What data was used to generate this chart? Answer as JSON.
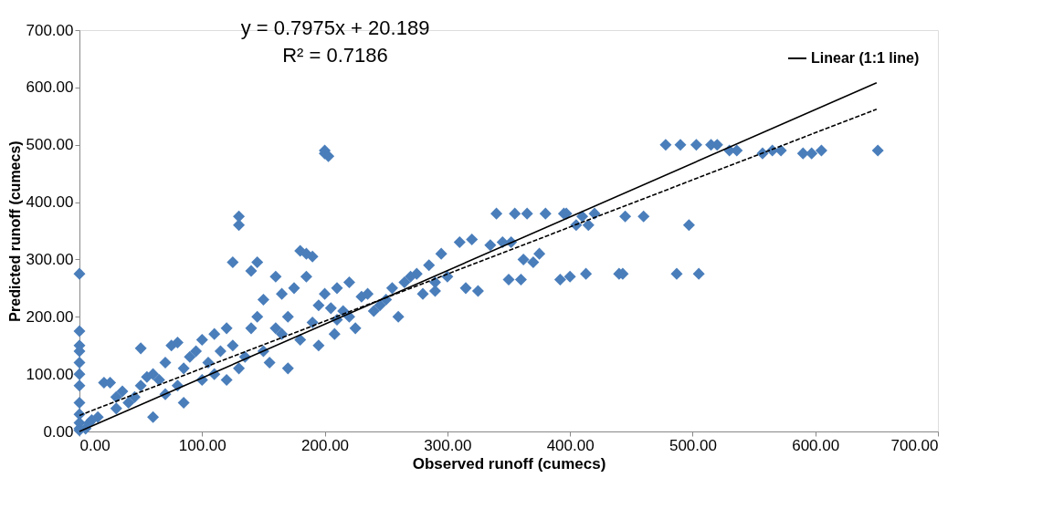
{
  "chart_data": {
    "type": "scatter",
    "xlabel": "Observed runoff (cumecs)",
    "ylabel": "Predicted runoff (cumecs)",
    "annotations": [
      "y = 0.7975x + 20.189",
      "R² = 0.7186"
    ],
    "xlim": [
      0,
      700
    ],
    "ylim": [
      0,
      700
    ],
    "xticks": [
      {
        "value": 0,
        "label": "0.00"
      },
      {
        "value": 100,
        "label": "100.00"
      },
      {
        "value": 200,
        "label": "200.00"
      },
      {
        "value": 300,
        "label": "300.00"
      },
      {
        "value": 400,
        "label": "400.00"
      },
      {
        "value": 500,
        "label": "500.00"
      },
      {
        "value": 600,
        "label": "600.00"
      },
      {
        "value": 700,
        "label": "700.00"
      }
    ],
    "yticks": [
      {
        "value": 0,
        "label": "0.00"
      },
      {
        "value": 100,
        "label": "100.00"
      },
      {
        "value": 200,
        "label": "200.00"
      },
      {
        "value": 300,
        "label": "300.00"
      },
      {
        "value": 400,
        "label": "400.00"
      },
      {
        "value": 500,
        "label": "500.00"
      },
      {
        "value": 600,
        "label": "600.00"
      },
      {
        "value": 700,
        "label": "700.00"
      }
    ],
    "grid": false,
    "legend": "top right",
    "marker": "diamond",
    "series": [
      {
        "color": "#4a7ebb",
        "x": [
          0,
          0,
          0,
          0,
          0,
          0,
          0,
          0,
          0,
          0,
          0,
          0,
          5,
          8,
          10,
          15,
          20,
          25,
          30,
          30,
          35,
          40,
          45,
          50,
          50,
          55,
          60,
          60,
          65,
          70,
          70,
          75,
          80,
          80,
          85,
          85,
          90,
          95,
          100,
          100,
          105,
          110,
          110,
          115,
          120,
          120,
          125,
          125,
          130,
          130,
          130,
          135,
          140,
          140,
          145,
          145,
          150,
          150,
          155,
          160,
          160,
          165,
          165,
          170,
          170,
          175,
          180,
          180,
          185,
          185,
          190,
          190,
          195,
          195,
          200,
          200,
          200,
          203,
          205,
          208,
          210,
          210,
          215,
          220,
          220,
          225,
          230,
          235,
          240,
          245,
          250,
          255,
          260,
          265,
          270,
          275,
          280,
          285,
          290,
          290,
          295,
          300,
          310,
          315,
          320,
          325,
          335,
          340,
          345,
          350,
          352,
          355,
          360,
          362,
          365,
          370,
          375,
          380,
          392,
          395,
          397,
          400,
          405,
          410,
          413,
          415,
          420,
          440,
          443,
          445,
          460,
          478,
          487,
          490,
          497,
          503,
          505,
          515,
          520,
          530,
          536,
          557,
          565,
          572,
          590,
          597,
          605,
          651
        ],
        "values": [
          275,
          175,
          150,
          140,
          120,
          100,
          80,
          50,
          30,
          15,
          5,
          2,
          5,
          15,
          20,
          25,
          85,
          85,
          40,
          60,
          70,
          50,
          60,
          145,
          80,
          95,
          25,
          100,
          90,
          120,
          65,
          150,
          155,
          80,
          110,
          50,
          130,
          140,
          90,
          160,
          120,
          170,
          100,
          140,
          90,
          180,
          295,
          150,
          360,
          375,
          110,
          130,
          280,
          180,
          295,
          200,
          140,
          230,
          120,
          270,
          180,
          170,
          240,
          110,
          200,
          250,
          315,
          160,
          310,
          270,
          305,
          190,
          220,
          150,
          490,
          485,
          240,
          480,
          215,
          170,
          250,
          195,
          210,
          200,
          260,
          180,
          235,
          240,
          210,
          220,
          230,
          250,
          200,
          260,
          270,
          275,
          240,
          290,
          260,
          245,
          310,
          270,
          330,
          250,
          335,
          245,
          325,
          380,
          330,
          265,
          330,
          380,
          265,
          300,
          380,
          295,
          310,
          380,
          265,
          380,
          380,
          270,
          360,
          375,
          275,
          360,
          380,
          275,
          275,
          375,
          375,
          500,
          275,
          500,
          360,
          500,
          275,
          500,
          500,
          490,
          490,
          485,
          490,
          490,
          485,
          485,
          490,
          490
        ]
      },
      {
        "name": "Linear (1:1 line)",
        "type": "line",
        "marker": "none",
        "line_style": "solid",
        "color": "#000000",
        "x": [
          0,
          650
        ],
        "values": [
          0,
          608
        ]
      },
      {
        "type": "line",
        "marker": "none",
        "line_style": "dashed",
        "color": "#000000",
        "x": [
          0,
          650
        ],
        "values": [
          28,
          562
        ]
      }
    ]
  }
}
